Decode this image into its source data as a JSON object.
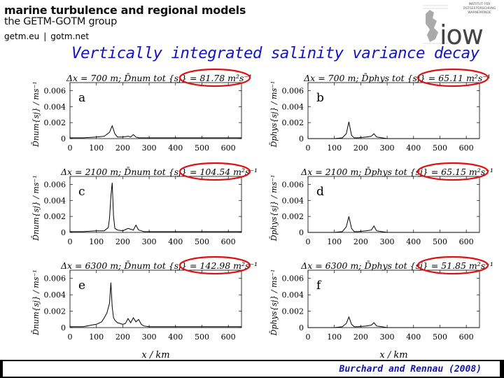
{
  "header": {
    "line1": "marine turbulence and regional models",
    "line2": "the GETM-GOTM group",
    "link1": "getm.eu",
    "link2": "gotm.net",
    "sep": "|"
  },
  "logo": {
    "institute": "INSTITUT FÜR OSTSEEFORSCHUNG WARNEMÜNDE",
    "name": "iow"
  },
  "title": "Vertically integrated salinity variance decay",
  "credit": "Burchard and Rennau (2008)",
  "colors": {
    "title": "#1414c8",
    "credit": "#1414a8",
    "highlight": "#e01010"
  },
  "figure": {
    "xlabel": "x / km",
    "ylabel_left": "D̄num{sj} / ms⁻¹",
    "ylabel_right": "D̄phys{sj} / ms⁻¹"
  },
  "chart_data": [
    {
      "type": "line",
      "panel": "a",
      "caption": "Δx = 700 m; D̄num tot {sj} = 81.78 m²s⁻¹",
      "highlight": "81.78 m²s⁻¹",
      "xlim": [
        0,
        650
      ],
      "ylim": [
        0,
        0.007
      ],
      "xticks": [
        "0",
        "100",
        "200",
        "300",
        "400",
        "500",
        "600"
      ],
      "yticks": [
        "0",
        "0.002",
        "0.004",
        "0.006"
      ],
      "x": [
        0,
        50,
        100,
        130,
        150,
        160,
        170,
        180,
        200,
        220,
        230,
        240,
        250,
        260,
        280,
        300,
        350,
        400,
        450,
        500,
        550,
        600,
        650
      ],
      "y": [
        0.0001,
        0.0001,
        0.0002,
        0.0003,
        0.0008,
        0.0016,
        0.0006,
        0.0002,
        0.0002,
        0.0003,
        0.0002,
        0.0005,
        0.0002,
        0.0001,
        0.0001,
        0.0001,
        0.0001,
        0.0001,
        0.0001,
        0.0001,
        0.0001,
        0.0001,
        0.0001
      ]
    },
    {
      "type": "line",
      "panel": "b",
      "caption": "Δx = 700 m; D̄phys tot {sj} = 65.11 m²s⁻¹",
      "highlight": "65.11 m²s⁻¹",
      "xlim": [
        0,
        650
      ],
      "ylim": [
        0,
        0.007
      ],
      "xticks": [
        "0",
        "100",
        "200",
        "300",
        "400",
        "500",
        "600"
      ],
      "yticks": [
        "0",
        "0.002",
        "0.004",
        "0.006"
      ],
      "x": [
        0,
        50,
        100,
        130,
        145,
        155,
        165,
        175,
        190,
        220,
        240,
        250,
        260,
        280,
        300,
        350,
        400,
        450,
        500,
        550,
        600,
        650
      ],
      "y": [
        0,
        0,
        0,
        0.0001,
        0.0006,
        0.0021,
        0.0004,
        0.0001,
        0.0001,
        0.0002,
        0.0003,
        0.0006,
        0.0002,
        0.0001,
        0,
        0,
        0,
        0,
        0,
        0,
        0,
        0
      ]
    },
    {
      "type": "line",
      "panel": "c",
      "caption": "Δx = 2100 m; D̄num tot {sj} = 104.54 m²s⁻¹",
      "highlight": "104.54 m²s⁻¹",
      "xlim": [
        0,
        650
      ],
      "ylim": [
        0,
        0.007
      ],
      "xticks": [
        "0",
        "100",
        "200",
        "300",
        "400",
        "500",
        "600"
      ],
      "yticks": [
        "0",
        "0.002",
        "0.004",
        "0.006"
      ],
      "x": [
        0,
        50,
        100,
        130,
        145,
        150,
        155,
        160,
        165,
        170,
        180,
        200,
        220,
        240,
        250,
        260,
        270,
        280,
        300,
        350,
        400,
        450,
        500,
        550,
        600,
        650
      ],
      "y": [
        0.0001,
        0.0001,
        0.0002,
        0.0002,
        0.0006,
        0.0018,
        0.0045,
        0.0062,
        0.002,
        0.0005,
        0.0003,
        0.0002,
        0.0005,
        0.0003,
        0.0009,
        0.0003,
        0.0002,
        0.0001,
        0.0001,
        0.0001,
        0.0001,
        0.0001,
        0.0001,
        0.0001,
        0.0001,
        0.0001
      ]
    },
    {
      "type": "line",
      "panel": "d",
      "caption": "Δx = 2100 m; D̄phys tot {sj} = 65.15 m²s⁻¹",
      "highlight": "65.15 m²s⁻¹",
      "xlim": [
        0,
        650
      ],
      "ylim": [
        0,
        0.007
      ],
      "xticks": [
        "0",
        "100",
        "200",
        "300",
        "400",
        "500",
        "600"
      ],
      "yticks": [
        "0",
        "0.002",
        "0.004",
        "0.006"
      ],
      "x": [
        0,
        50,
        100,
        130,
        145,
        155,
        165,
        175,
        190,
        220,
        240,
        250,
        260,
        280,
        300,
        350,
        400,
        450,
        500,
        550,
        600,
        650
      ],
      "y": [
        0,
        0,
        0,
        0.0001,
        0.0007,
        0.002,
        0.0005,
        0.0001,
        0.0001,
        0.0002,
        0.0003,
        0.0008,
        0.0002,
        0.0001,
        0,
        0,
        0,
        0,
        0,
        0,
        0,
        0
      ]
    },
    {
      "type": "line",
      "panel": "e",
      "caption": "Δx = 6300 m; D̄num tot {sj} = 142.98 m²s⁻¹",
      "highlight": "142.98 m²s⁻¹",
      "xlim": [
        0,
        650
      ],
      "ylim": [
        0,
        0.007
      ],
      "xticks": [
        "0",
        "100",
        "200",
        "300",
        "400",
        "500",
        "600"
      ],
      "yticks": [
        "0",
        "0.002",
        "0.004",
        "0.006"
      ],
      "x": [
        0,
        50,
        80,
        100,
        120,
        130,
        140,
        150,
        155,
        160,
        165,
        170,
        180,
        190,
        200,
        210,
        220,
        230,
        240,
        250,
        260,
        270,
        280,
        300,
        350,
        400,
        450,
        500,
        550,
        600,
        650
      ],
      "y": [
        0.0001,
        0.0001,
        0.0003,
        0.0004,
        0.0007,
        0.0012,
        0.0018,
        0.003,
        0.0055,
        0.0025,
        0.0012,
        0.0009,
        0.0006,
        0.0005,
        0.0004,
        0.0005,
        0.0011,
        0.0006,
        0.0012,
        0.0007,
        0.001,
        0.0004,
        0.0002,
        0.0001,
        0.0001,
        0.0001,
        0.0001,
        0.0001,
        0.0001,
        0.0001,
        0.0001
      ]
    },
    {
      "type": "line",
      "panel": "f",
      "caption": "Δx = 6300 m; D̄phys tot {sj} = 51.85 m²s⁻¹",
      "highlight": "51.85 m²s⁻¹",
      "xlim": [
        0,
        650
      ],
      "ylim": [
        0,
        0.007
      ],
      "xticks": [
        "0",
        "100",
        "200",
        "300",
        "400",
        "500",
        "600"
      ],
      "yticks": [
        "0",
        "0.002",
        "0.004",
        "0.006"
      ],
      "x": [
        0,
        50,
        100,
        130,
        145,
        155,
        165,
        175,
        190,
        220,
        240,
        250,
        260,
        280,
        300,
        350,
        400,
        450,
        500,
        550,
        600,
        650
      ],
      "y": [
        0,
        0,
        0,
        0.0001,
        0.0005,
        0.0013,
        0.0004,
        0.0001,
        0.0001,
        0.0002,
        0.0003,
        0.0006,
        0.0002,
        0.0001,
        0,
        0,
        0,
        0,
        0,
        0,
        0,
        0
      ]
    }
  ]
}
